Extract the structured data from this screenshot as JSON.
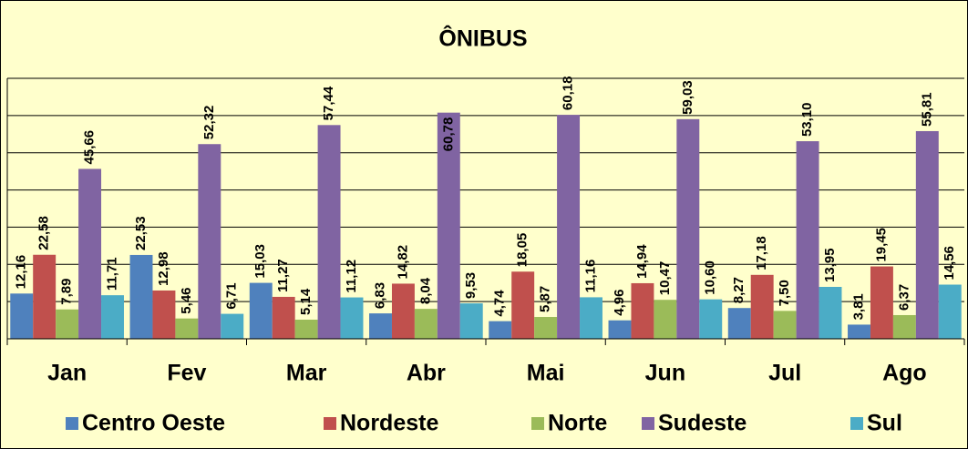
{
  "chart_data": {
    "type": "bar",
    "title": "ÔNIBUS",
    "categories": [
      "Jan",
      "Fev",
      "Mar",
      "Abr",
      "Mai",
      "Jun",
      "Jul",
      "Ago"
    ],
    "series": [
      {
        "name": "Centro Oeste",
        "color": "#4f81bd",
        "values": [
          12.16,
          22.53,
          15.03,
          6.83,
          4.74,
          4.96,
          8.27,
          3.81
        ],
        "value_labels": [
          "12,16",
          "22,53",
          "15,03",
          "6,83",
          "4,74",
          "4,96",
          "8,27",
          "3,81"
        ]
      },
      {
        "name": "Nordeste",
        "color": "#c0504d",
        "values": [
          22.58,
          12.98,
          11.27,
          14.82,
          18.05,
          14.94,
          17.18,
          19.45
        ],
        "value_labels": [
          "22,58",
          "12,98",
          "11,27",
          "14,82",
          "18,05",
          "14,94",
          "17,18",
          "19,45"
        ]
      },
      {
        "name": "Norte",
        "color": "#9bbb59",
        "values": [
          7.89,
          5.46,
          5.14,
          8.04,
          5.87,
          10.47,
          7.5,
          6.37
        ],
        "value_labels": [
          "7,89",
          "5,46",
          "5,14",
          "8,04",
          "5,87",
          "10,47",
          "7,50",
          "6,37"
        ]
      },
      {
        "name": "Sudeste",
        "color": "#8064a2",
        "values": [
          45.66,
          52.32,
          57.44,
          60.78,
          60.18,
          59.03,
          53.1,
          55.81
        ],
        "value_labels": [
          "45,66",
          "52,32",
          "57,44",
          "60,78",
          "60,18",
          "59,03",
          "53,10",
          "55,81"
        ]
      },
      {
        "name": "Sul",
        "color": "#4bacc6",
        "values": [
          11.71,
          6.71,
          11.12,
          9.53,
          11.16,
          10.6,
          13.95,
          14.56
        ],
        "value_labels": [
          "11,71",
          "6,71",
          "11,12",
          "9,53",
          "11,16",
          "10,60",
          "13,95",
          "14,56"
        ]
      }
    ],
    "ylim": [
      0,
      70
    ],
    "yticks": [
      0,
      10,
      20,
      30,
      40,
      50,
      60,
      70
    ],
    "grid": true,
    "legend": "bottom"
  }
}
